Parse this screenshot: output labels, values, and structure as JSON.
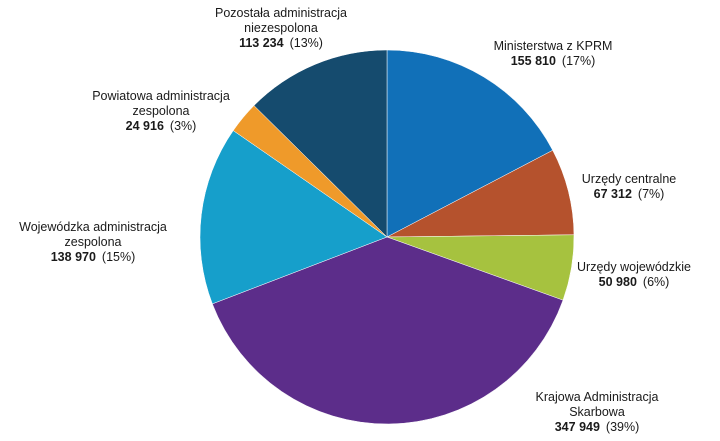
{
  "chart_data": {
    "type": "pie",
    "title": "",
    "slices": [
      {
        "label_lines": [
          "Ministerstwa z KPRM"
        ],
        "value": 155810,
        "value_text": "155 810",
        "pct_text": "(17%)",
        "color": "#1170b8"
      },
      {
        "label_lines": [
          "Urzędy centralne"
        ],
        "value": 67312,
        "value_text": "67 312",
        "pct_text": "(7%)",
        "color": "#b5522d"
      },
      {
        "label_lines": [
          "Urzędy wojewódzkie"
        ],
        "value": 50980,
        "value_text": "50 980",
        "pct_text": "(6%)",
        "color": "#a6c23f"
      },
      {
        "label_lines": [
          "Krajowa Administracja",
          "Skarbowa"
        ],
        "value": 347949,
        "value_text": "347 949",
        "pct_text": "(39%)",
        "color": "#5c2d8a"
      },
      {
        "label_lines": [
          "Wojewódzka administracja",
          "zespolona"
        ],
        "value": 138970,
        "value_text": "138 970",
        "pct_text": "(15%)",
        "color": "#169fcb"
      },
      {
        "label_lines": [
          "Powiatowa administracja",
          "zespolona"
        ],
        "value": 24916,
        "value_text": "24 916",
        "pct_text": "(3%)",
        "color": "#ef9a2a"
      },
      {
        "label_lines": [
          "Pozostała administracja",
          "niezespolona"
        ],
        "value": 113234,
        "value_text": "113 234",
        "pct_text": "(13%)",
        "color": "#154b6e"
      }
    ]
  }
}
